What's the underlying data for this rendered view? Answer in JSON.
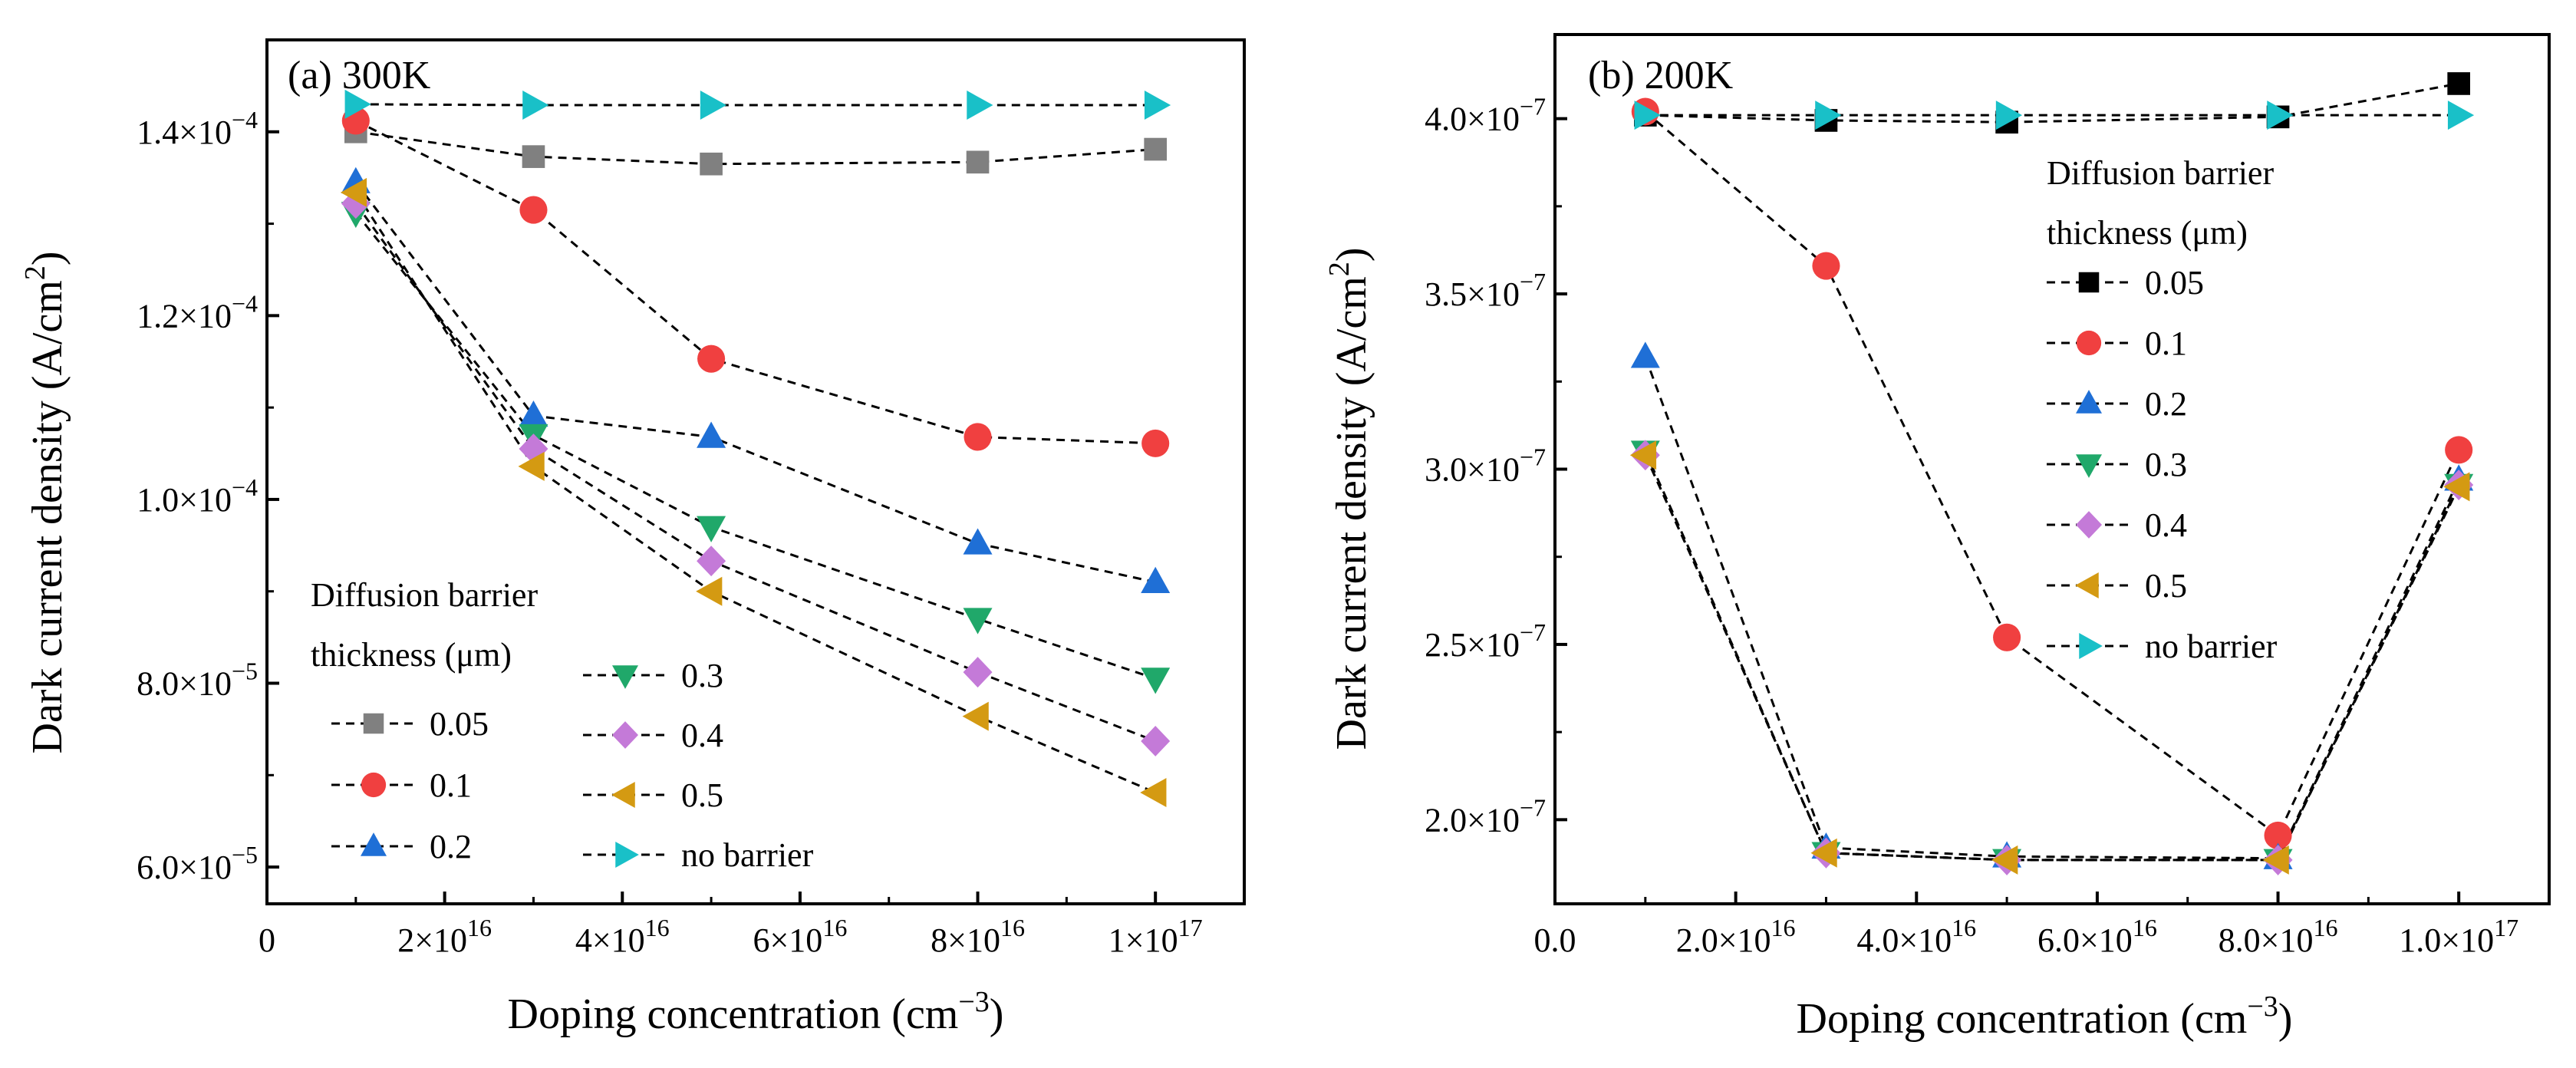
{
  "chart_data": [
    {
      "type": "line",
      "panel_title": "(a) 300K",
      "xlabel": "Doping concentration (cm",
      "xlabel_sup": "−3",
      "xlabel_end": ")",
      "ylabel": "Dark current density (A/cm",
      "ylabel_sup": "2",
      "ylabel_end": ")",
      "xlim": [
        0,
        1.1e+17
      ],
      "ylim": [
        5.6e-05,
        0.00015
      ],
      "xticks": [
        {
          "v": 0,
          "base": "0",
          "sup": ""
        },
        {
          "v": 2e+16,
          "base": "2×10",
          "sup": "16"
        },
        {
          "v": 4e+16,
          "base": "4×10",
          "sup": "16"
        },
        {
          "v": 6e+16,
          "base": "6×10",
          "sup": "16"
        },
        {
          "v": 8e+16,
          "base": "8×10",
          "sup": "16"
        },
        {
          "v": 1e+17,
          "base": "1×10",
          "sup": "17"
        }
      ],
      "yticks": [
        {
          "v": 6e-05,
          "base": "6.0×10",
          "sup": "−5"
        },
        {
          "v": 8e-05,
          "base": "8.0×10",
          "sup": "−5"
        },
        {
          "v": 0.0001,
          "base": "1.0×10",
          "sup": "−4"
        },
        {
          "v": 0.00012,
          "base": "1.2×10",
          "sup": "−4"
        },
        {
          "v": 0.00014,
          "base": "1.4×10",
          "sup": "−4"
        }
      ],
      "x": [
        1e+16,
        3e+16,
        5e+16,
        8e+16,
        1e+17
      ],
      "legend": {
        "title_line1": "Diffusion barrier",
        "title_line2": "thickness (μm)",
        "placement": "bottom-left, two columns"
      },
      "series": [
        {
          "name": "0.05",
          "marker": "square",
          "color": "#808080",
          "values": [
            0.00014,
            0.0001373,
            0.0001365,
            0.0001367,
            0.0001381
          ]
        },
        {
          "name": "0.1",
          "marker": "circle",
          "color": "#f04040",
          "values": [
            0.0001412,
            0.0001315,
            0.0001153,
            0.0001068,
            0.0001061
          ]
        },
        {
          "name": "0.2",
          "marker": "triangle-up",
          "color": "#1f6fd6",
          "values": [
            0.0001345,
            0.0001091,
            0.0001068,
            9.52e-05,
            9.1e-05
          ]
        },
        {
          "name": "0.3",
          "marker": "triangle-down",
          "color": "#20a86a",
          "values": [
            0.0001312,
            0.000107,
            9.7e-05,
            8.7e-05,
            8.05e-05
          ]
        },
        {
          "name": "0.4",
          "marker": "diamond",
          "color": "#c47ad8",
          "values": [
            0.0001322,
            0.0001055,
            9.33e-05,
            8.12e-05,
            7.37e-05
          ]
        },
        {
          "name": "0.5",
          "marker": "triangle-left",
          "color": "#d49a12",
          "values": [
            0.0001334,
            0.0001036,
            9e-05,
            7.64e-05,
            6.81e-05
          ]
        },
        {
          "name": "no barrier",
          "marker": "triangle-right",
          "color": "#19c0c8",
          "values": [
            0.000143,
            0.0001429,
            0.0001429,
            0.0001429,
            0.0001429
          ]
        }
      ]
    },
    {
      "type": "line",
      "panel_title": "(b) 200K",
      "xlabel": "Doping concentration (cm",
      "xlabel_sup": "−3",
      "xlabel_end": ")",
      "ylabel": "Dark current density (A/cm",
      "ylabel_sup": "2",
      "ylabel_end": ")",
      "xlim": [
        0,
        1.1e+17
      ],
      "ylim": [
        1.76e-07,
        4.24e-07
      ],
      "xticks": [
        {
          "v": 0,
          "base": "0.0",
          "sup": ""
        },
        {
          "v": 2e+16,
          "base": "2.0×10",
          "sup": "16"
        },
        {
          "v": 4e+16,
          "base": "4.0×10",
          "sup": "16"
        },
        {
          "v": 6e+16,
          "base": "6.0×10",
          "sup": "16"
        },
        {
          "v": 8e+16,
          "base": "8.0×10",
          "sup": "16"
        },
        {
          "v": 1e+17,
          "base": "1.0×10",
          "sup": "17"
        }
      ],
      "yticks": [
        {
          "v": 2e-07,
          "base": "2.0×10",
          "sup": "−7"
        },
        {
          "v": 2.5e-07,
          "base": "2.5×10",
          "sup": "−7"
        },
        {
          "v": 3e-07,
          "base": "3.0×10",
          "sup": "−7"
        },
        {
          "v": 3.5e-07,
          "base": "3.5×10",
          "sup": "−7"
        },
        {
          "v": 4e-07,
          "base": "4.0×10",
          "sup": "−7"
        }
      ],
      "x": [
        1e+16,
        3e+16,
        5e+16,
        8e+16,
        1e+17
      ],
      "legend": {
        "title_line1": "Diffusion barrier",
        "title_line2": "thickness (μm)",
        "placement": "top-right, one column"
      },
      "series": [
        {
          "name": "0.05",
          "marker": "square",
          "color": "#000000",
          "values": [
            4.01e-07,
            3.995e-07,
            3.99e-07,
            4.005e-07,
            4.1e-07
          ]
        },
        {
          "name": "0.1",
          "marker": "circle",
          "color": "#f04040",
          "values": [
            4.02e-07,
            3.58e-07,
            2.52e-07,
            1.955e-07,
            3.055e-07
          ]
        },
        {
          "name": "0.2",
          "marker": "triangle-up",
          "color": "#1f6fd6",
          "values": [
            3.32e-07,
            1.92e-07,
            1.895e-07,
            1.89e-07,
            2.97e-07
          ]
        },
        {
          "name": "0.3",
          "marker": "triangle-down",
          "color": "#20a86a",
          "values": [
            3.05e-07,
            1.905e-07,
            1.885e-07,
            1.885e-07,
            2.955e-07
          ]
        },
        {
          "name": "0.4",
          "marker": "diamond",
          "color": "#c47ad8",
          "values": [
            3.04e-07,
            1.905e-07,
            1.885e-07,
            1.885e-07,
            2.955e-07
          ]
        },
        {
          "name": "0.5",
          "marker": "triangle-left",
          "color": "#d49a12",
          "values": [
            3.04e-07,
            1.905e-07,
            1.885e-07,
            1.885e-07,
            2.95e-07
          ]
        },
        {
          "name": "no barrier",
          "marker": "triangle-right",
          "color": "#19c0c8",
          "values": [
            4.01e-07,
            4.01e-07,
            4.01e-07,
            4.01e-07,
            4.01e-07
          ]
        }
      ]
    }
  ]
}
